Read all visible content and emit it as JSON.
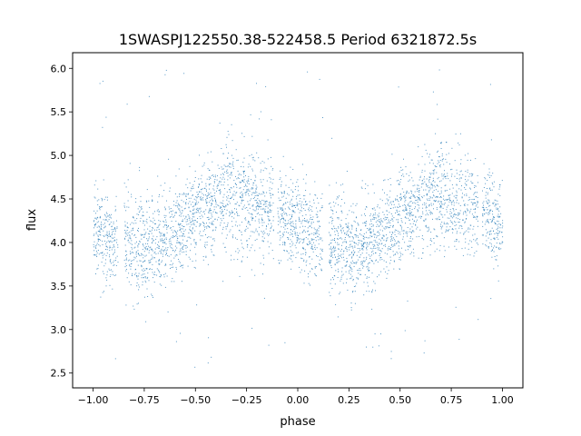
{
  "chart_data": {
    "type": "scatter",
    "title": "1SWASPJ122550.38-522458.5 Period 6321872.5s",
    "xlabel": "phase",
    "ylabel": "flux",
    "xlim": [
      -1.1,
      1.1
    ],
    "ylim": [
      2.33,
      6.18
    ],
    "xticks": [
      -1.0,
      -0.75,
      -0.5,
      -0.25,
      0.0,
      0.25,
      0.5,
      0.75,
      1.0
    ],
    "xtick_labels": [
      "−1.00",
      "−0.75",
      "−0.50",
      "−0.25",
      "0.00",
      "0.25",
      "0.50",
      "0.75",
      "1.00"
    ],
    "yticks": [
      2.5,
      3.0,
      3.5,
      4.0,
      4.5,
      5.0,
      5.5,
      6.0
    ],
    "ytick_labels": [
      "2.5",
      "3.0",
      "3.5",
      "4.0",
      "4.5",
      "5.0",
      "5.5",
      "6.0"
    ],
    "grid": false,
    "marker_color": "#1f77b4",
    "profile": {
      "phase": [
        0.0,
        0.05,
        0.1,
        0.15,
        0.2,
        0.25,
        0.3,
        0.35,
        0.4,
        0.45,
        0.5,
        0.55,
        0.6,
        0.65,
        0.7,
        0.75,
        0.8,
        0.85,
        0.9,
        0.95,
        1.0
      ],
      "median_flux": [
        4.2,
        4.1,
        4.05,
        4.0,
        3.98,
        3.95,
        3.95,
        4.0,
        4.1,
        4.2,
        4.3,
        4.35,
        4.45,
        4.55,
        4.55,
        4.5,
        4.45,
        4.4,
        4.35,
        4.3,
        4.2
      ],
      "scatter": [
        0.25,
        0.28,
        0.26,
        0.27,
        0.3,
        0.27,
        0.26,
        0.25,
        0.25,
        0.24,
        0.25,
        0.26,
        0.27,
        0.28,
        0.3,
        0.3,
        0.28,
        0.27,
        0.26,
        0.25,
        0.25
      ]
    },
    "gaps": [
      [
        -0.88,
        -0.85
      ],
      [
        -0.12,
        -0.1
      ],
      [
        0.12,
        0.15
      ],
      [
        0.88,
        0.9
      ]
    ],
    "outlier_range": [
      2.5,
      6.0
    ]
  }
}
